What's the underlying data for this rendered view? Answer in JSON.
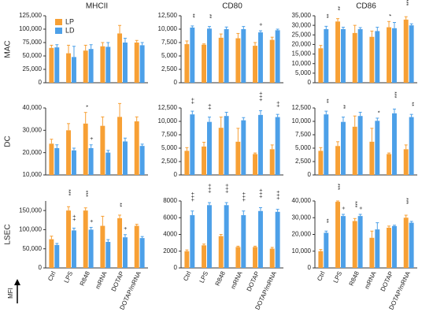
{
  "chart_data": [
    {
      "type": "bar",
      "title": "MHCII",
      "ylabel": "MAC",
      "legend": "upper left",
      "ylim": [
        0,
        125000
      ],
      "yticks": [
        0,
        {
          "value": 25000,
          "label": "25,000"
        },
        {
          "value": 50000,
          "label": "50,000"
        },
        {
          "value": 75000,
          "label": "75,000"
        },
        {
          "value": 100000,
          "label": "100,000"
        },
        {
          "value": 125000,
          "label": "125,000"
        }
      ],
      "series": [
        {
          "name": "LP",
          "color": "#f7a035",
          "values": [
            65000,
            55000,
            60000,
            68000,
            92000,
            75000
          ],
          "errors": [
            5000,
            15000,
            10000,
            7000,
            15000,
            4000
          ],
          "markers": [
            null,
            null,
            null,
            null,
            null,
            null
          ]
        },
        {
          "name": "LD",
          "color": "#4da0e8",
          "values": [
            66000,
            48000,
            63000,
            67000,
            75000,
            70000
          ],
          "errors": [
            5000,
            20000,
            8000,
            8000,
            8000,
            5000
          ],
          "markers": [
            null,
            null,
            null,
            null,
            null,
            null
          ]
        }
      ]
    },
    {
      "type": "bar",
      "title": "CD80",
      "ylim": [
        0,
        12500
      ],
      "yticks": [
        0,
        {
          "value": 2500,
          "label": "2,500"
        },
        {
          "value": 5000,
          "label": "5,000"
        },
        {
          "value": 7500,
          "label": "7,500"
        },
        {
          "value": 10000,
          "label": "10,000"
        },
        {
          "value": 12500,
          "label": "12,500"
        }
      ],
      "series": [
        {
          "name": "LP",
          "color": "#f7a035",
          "values": [
            7200,
            7100,
            8400,
            8300,
            6900,
            8000
          ],
          "errors": [
            600,
            150,
            700,
            900,
            600,
            500
          ],
          "markers": [
            null,
            null,
            null,
            null,
            null,
            null
          ]
        },
        {
          "name": "LD",
          "color": "#4da0e8",
          "values": [
            10300,
            10100,
            10000,
            10000,
            9400,
            9800
          ],
          "errors": [
            300,
            400,
            400,
            500,
            300,
            200
          ],
          "markers": [
            "**",
            "**",
            null,
            null,
            "+",
            null
          ]
        }
      ]
    },
    {
      "type": "bar",
      "title": "CD86",
      "ylim": [
        0,
        35000
      ],
      "yticks": [
        0,
        {
          "value": 5000,
          "label": "5,000"
        },
        {
          "value": 10000,
          "label": "10,000"
        },
        {
          "value": 15000,
          "label": "15,000"
        },
        {
          "value": 20000,
          "label": "20,000"
        },
        {
          "value": 25000,
          "label": "25,000"
        },
        {
          "value": 30000,
          "label": "30,000"
        },
        {
          "value": 35000,
          "label": "35,000"
        }
      ],
      "series": [
        {
          "name": "LP",
          "color": "#f7a035",
          "values": [
            18000,
            32000,
            26000,
            24000,
            29000,
            33000
          ],
          "errors": [
            1500,
            1500,
            4000,
            3000,
            3000,
            1500
          ],
          "markers": [
            null,
            "**",
            null,
            null,
            "*",
            "***"
          ]
        },
        {
          "name": "LD",
          "color": "#4da0e8",
          "values": [
            28000,
            28000,
            28000,
            27000,
            28500,
            30000
          ],
          "errors": [
            1500,
            1000,
            800,
            2000,
            3000,
            800
          ],
          "markers": [
            "**",
            null,
            null,
            null,
            null,
            null
          ]
        }
      ]
    },
    {
      "type": "bar",
      "ylabel": "DC",
      "ylim": [
        10000,
        40000
      ],
      "yticks": [
        {
          "value": 10000,
          "label": "10,000"
        },
        {
          "value": 20000,
          "label": "20,000"
        },
        {
          "value": 30000,
          "label": "30,000"
        },
        {
          "value": 40000,
          "label": "40,000"
        }
      ],
      "series": [
        {
          "name": "LP",
          "color": "#f7a035",
          "values": [
            24000,
            30000,
            33000,
            32000,
            36000,
            34000
          ],
          "errors": [
            2000,
            3000,
            5000,
            4000,
            6000,
            2000
          ],
          "markers": [
            null,
            null,
            "*",
            null,
            null,
            null
          ]
        },
        {
          "name": "LD",
          "color": "#4da0e8",
          "values": [
            22000,
            21000,
            22000,
            20000,
            25000,
            23000
          ],
          "errors": [
            1500,
            1000,
            1500,
            1000,
            1500,
            800
          ],
          "markers": [
            null,
            null,
            "+",
            null,
            null,
            null
          ]
        }
      ]
    },
    {
      "type": "bar",
      "ylim": [
        0,
        12500
      ],
      "yticks": [
        0,
        {
          "value": 2500,
          "label": "2,500"
        },
        {
          "value": 5000,
          "label": "5,000"
        },
        {
          "value": 7500,
          "label": "7,500"
        },
        {
          "value": 10000,
          "label": "10,000"
        },
        {
          "value": 12500,
          "label": "12,500"
        }
      ],
      "series": [
        {
          "name": "LP",
          "color": "#f7a035",
          "values": [
            4500,
            5300,
            8800,
            6200,
            3900,
            4800
          ],
          "errors": [
            600,
            800,
            2000,
            2500,
            200,
            800
          ],
          "markers": [
            null,
            null,
            null,
            null,
            null,
            null
          ]
        },
        {
          "name": "LD",
          "color": "#4da0e8",
          "values": [
            11300,
            9900,
            11000,
            10200,
            11200,
            10800
          ],
          "errors": [
            600,
            900,
            700,
            500,
            800,
            500
          ],
          "markers": [
            "++",
            "++",
            null,
            null,
            "+++",
            "++"
          ]
        }
      ]
    },
    {
      "type": "bar",
      "ylim": [
        0,
        12500
      ],
      "yticks": [
        0,
        {
          "value": 2500,
          "label": "2,500"
        },
        {
          "value": 5000,
          "label": "5,000"
        },
        {
          "value": 7500,
          "label": "7,500"
        },
        {
          "value": 10000,
          "label": "10,000"
        },
        {
          "value": 12500,
          "label": "12,500"
        }
      ],
      "series": [
        {
          "name": "LP",
          "color": "#f7a035",
          "values": [
            4500,
            5400,
            9000,
            6200,
            3900,
            4800
          ],
          "errors": [
            600,
            800,
            2000,
            2500,
            200,
            800
          ],
          "markers": [
            null,
            null,
            null,
            null,
            null,
            null
          ]
        },
        {
          "name": "LD",
          "color": "#4da0e8",
          "values": [
            11300,
            9900,
            11000,
            10100,
            11500,
            10800
          ],
          "errors": [
            600,
            900,
            700,
            500,
            800,
            500
          ],
          "markers": [
            "**",
            "**",
            null,
            "*",
            "***",
            "**"
          ]
        }
      ]
    },
    {
      "type": "bar",
      "ylabel": "LSEC",
      "annotation": "MFI",
      "ylim": [
        0,
        175000
      ],
      "yticks": [
        0,
        {
          "value": 50000,
          "label": "50,000"
        },
        {
          "value": 100000,
          "label": "100,000"
        },
        {
          "value": 150000,
          "label": "150,000"
        }
      ],
      "categories": [
        "Ctrl",
        "LPS",
        "R848",
        "mRNA",
        "DOTAP",
        "DOTAP/mRNA"
      ],
      "series": [
        {
          "name": "LP",
          "color": "#f7a035",
          "values": [
            75000,
            150000,
            150000,
            110000,
            130000,
            110000
          ],
          "errors": [
            8000,
            10000,
            7000,
            25000,
            8000,
            4000
          ],
          "markers": [
            null,
            "***",
            "***",
            null,
            "**",
            null
          ]
        },
        {
          "name": "LD",
          "color": "#4da0e8",
          "values": [
            60000,
            98000,
            100000,
            68000,
            80000,
            78000
          ],
          "errors": [
            4000,
            6000,
            6000,
            6000,
            7000,
            4000
          ],
          "markers": [
            null,
            "++",
            "+",
            null,
            "+",
            null
          ]
        }
      ]
    },
    {
      "type": "bar",
      "ylim": [
        0,
        8000
      ],
      "yticks": [
        0,
        {
          "value": 2000,
          "label": "2000"
        },
        {
          "value": 4000,
          "label": "4000"
        },
        {
          "value": 6000,
          "label": "6000"
        },
        {
          "value": 8000,
          "label": "8000"
        }
      ],
      "categories": [
        "Ctrl",
        "LPS",
        "R848",
        "mRNA",
        "DOTAP",
        "DOTAP/mRNA"
      ],
      "series": [
        {
          "name": "LP",
          "color": "#f7a035",
          "values": [
            2000,
            2700,
            3800,
            2500,
            2500,
            2300
          ],
          "errors": [
            150,
            150,
            200,
            100,
            100,
            150
          ],
          "markers": [
            null,
            null,
            null,
            null,
            null,
            null
          ]
        },
        {
          "name": "LD",
          "color": "#4da0e8",
          "values": [
            6300,
            7500,
            7500,
            6300,
            6800,
            6700
          ],
          "errors": [
            500,
            300,
            300,
            500,
            400,
            300
          ],
          "markers": [
            "+++",
            "+++",
            "+++",
            "+++",
            "+++",
            "+++"
          ]
        }
      ]
    },
    {
      "type": "bar",
      "ylim": [
        0,
        40000
      ],
      "yticks": [
        0,
        {
          "value": 10000,
          "label": "10,000"
        },
        {
          "value": 20000,
          "label": "20,000"
        },
        {
          "value": 30000,
          "label": "30,000"
        },
        {
          "value": 40000,
          "label": "40,000"
        }
      ],
      "categories": [
        "Ctrl",
        "LPS",
        "R848",
        "mRNA",
        "DOTAP",
        "DOTAP/mRNA"
      ],
      "series": [
        {
          "name": "LP",
          "color": "#f7a035",
          "values": [
            10000,
            39500,
            28000,
            18000,
            24000,
            30000
          ],
          "errors": [
            1000,
            500,
            1500,
            4000,
            1000,
            1500
          ],
          "markers": [
            null,
            "***",
            "***",
            null,
            null,
            "***"
          ]
        },
        {
          "name": "LD",
          "color": "#4da0e8",
          "values": [
            21000,
            31000,
            31000,
            23000,
            25000,
            27000
          ],
          "errors": [
            1000,
            1000,
            1000,
            4000,
            500,
            800
          ],
          "markers": [
            "**",
            "+",
            "+",
            null,
            null,
            null
          ]
        }
      ]
    }
  ]
}
